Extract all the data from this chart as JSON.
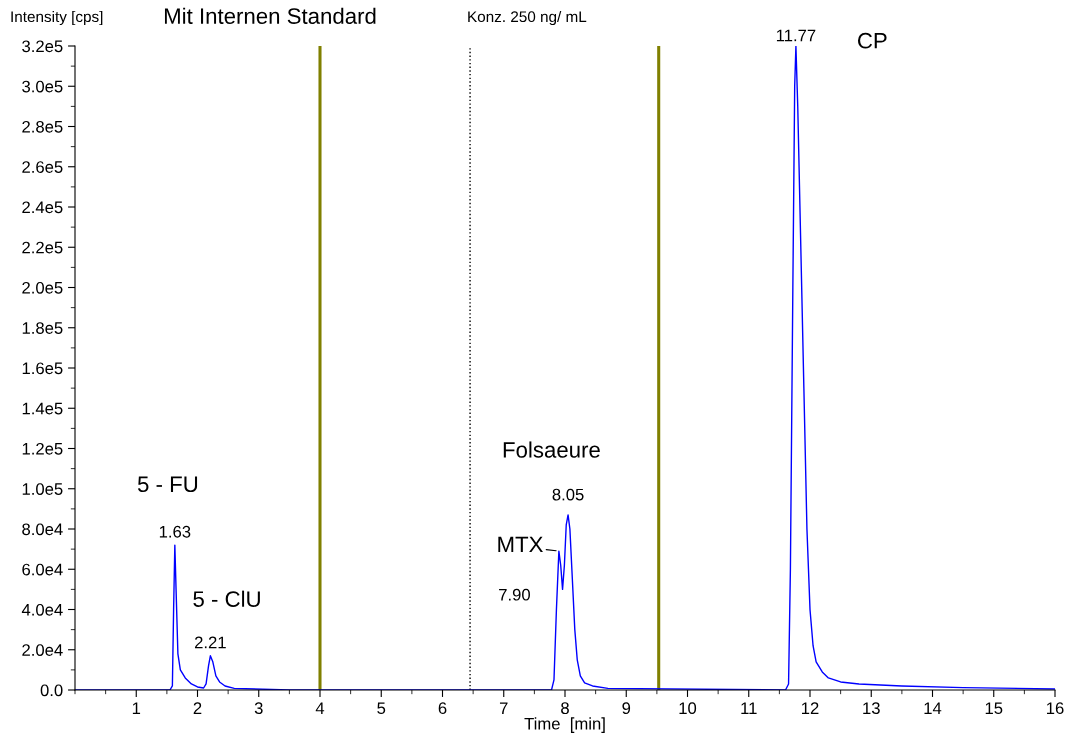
{
  "chart_data": {
    "type": "line",
    "title": "Mit Internen Standard",
    "subtitle": "Konz. 250 ng/ mL",
    "xlabel": "Time  [min]",
    "ylabel": "Intensity [cps]",
    "x": [
      0,
      1.55,
      1.59,
      1.61,
      1.63,
      1.65,
      1.68,
      1.72,
      1.8,
      1.9,
      2.0,
      2.1,
      2.14,
      2.18,
      2.21,
      2.25,
      2.3,
      2.36,
      2.45,
      2.6,
      3.5,
      7.78,
      7.82,
      7.86,
      7.9,
      7.93,
      7.96,
      7.99,
      8.02,
      8.05,
      8.08,
      8.12,
      8.16,
      8.2,
      8.25,
      8.32,
      8.45,
      8.7,
      11.6,
      11.65,
      11.68,
      11.72,
      11.75,
      11.77,
      11.8,
      11.85,
      11.9,
      11.95,
      12.0,
      12.05,
      12.1,
      12.2,
      12.3,
      12.5,
      12.8,
      13.5,
      14.5,
      16
    ],
    "series": [
      {
        "color": "#0000ff",
        "values": [
          0,
          0,
          2000,
          40000,
          72000,
          50000,
          18000,
          10000,
          6000,
          3000,
          1500,
          1000,
          3000,
          12000,
          17000,
          14000,
          7000,
          4000,
          2000,
          800,
          0,
          0,
          5000,
          40000,
          69000,
          62000,
          50000,
          62000,
          82000,
          87000,
          80000,
          55000,
          30000,
          15000,
          7000,
          3500,
          2000,
          800,
          0,
          3000,
          60000,
          200000,
          300000,
          320000,
          290000,
          220000,
          150000,
          80000,
          40000,
          22000,
          14000,
          9000,
          6000,
          4000,
          3000,
          2000,
          1200,
          500
        ]
      }
    ],
    "xlim": [
      0,
      16
    ],
    "xticks": [
      1,
      2,
      3,
      4,
      5,
      6,
      7,
      8,
      9,
      10,
      11,
      12,
      13,
      14,
      15,
      16
    ],
    "ylim": [
      0,
      320000
    ],
    "yticks": [
      {
        "value": 0,
        "label": "0.0"
      },
      {
        "value": 20000,
        "label": "2.0e4"
      },
      {
        "value": 40000,
        "label": "4.0e4"
      },
      {
        "value": 60000,
        "label": "6.0e4"
      },
      {
        "value": 80000,
        "label": "8.0e4"
      },
      {
        "value": 100000,
        "label": "1.0e5"
      },
      {
        "value": 120000,
        "label": "1.2e5"
      },
      {
        "value": 140000,
        "label": "1.4e5"
      },
      {
        "value": 160000,
        "label": "1.6e5"
      },
      {
        "value": 180000,
        "label": "1.8e5"
      },
      {
        "value": 200000,
        "label": "2.0e5"
      },
      {
        "value": 220000,
        "label": "2.2e5"
      },
      {
        "value": 240000,
        "label": "2.4e5"
      },
      {
        "value": 260000,
        "label": "2.6e5"
      },
      {
        "value": 280000,
        "label": "2.8e5"
      },
      {
        "value": 300000,
        "label": "3.0e5"
      },
      {
        "value": 320000,
        "label": "3.2e5"
      }
    ],
    "ref_lines": [
      {
        "axis": "x",
        "value": 4.0,
        "color": "#808000",
        "line_style": "solid"
      },
      {
        "axis": "x",
        "value": 6.45,
        "color": "#000000",
        "line_style": "dotted"
      },
      {
        "axis": "x",
        "value": 9.53,
        "color": "#808000",
        "line_style": "solid"
      }
    ],
    "annotations": [
      {
        "text": "1.63",
        "x": 1.63,
        "y": 72000
      },
      {
        "text": "5 - FU",
        "x": 1.63,
        "y": 72000
      },
      {
        "text": "2.21",
        "x": 2.21,
        "y": 17000
      },
      {
        "text": "5 - ClU",
        "x": 2.21,
        "y": 17000
      },
      {
        "text": "7.90",
        "x": 7.9,
        "y": 69000
      },
      {
        "text": "MTX",
        "x": 7.9,
        "y": 69000
      },
      {
        "text": "8.05",
        "x": 8.05,
        "y": 87000
      },
      {
        "text": "Folsaeure",
        "x": 8.05,
        "y": 87000
      },
      {
        "text": "11.77",
        "x": 11.77,
        "y": 320000
      },
      {
        "text": "CP",
        "x": 11.77,
        "y": 320000
      }
    ],
    "grid": false,
    "legend": false,
    "marker": "none",
    "line_style": "solid"
  }
}
